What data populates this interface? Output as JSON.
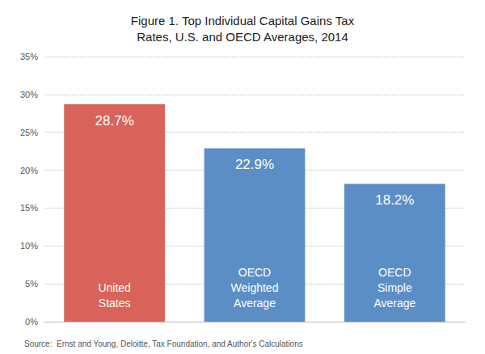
{
  "chart_data": {
    "type": "bar",
    "title": "Figure 1. Top Individual Capital Gains Tax\nRates, U.S. and OECD Averages, 2014",
    "categories": [
      "United\nStates",
      "OECD\nWeighted\nAverage",
      "OECD\nSimple\nAverage"
    ],
    "values": [
      28.7,
      22.9,
      18.2
    ],
    "value_labels": [
      "28.7%",
      "22.9%",
      "18.2%"
    ],
    "colors": [
      "#d9635a",
      "#5b8ec4",
      "#5b8ec4"
    ],
    "ylim": [
      0,
      35
    ],
    "yticks": [
      {
        "value": 0,
        "label": "0%"
      },
      {
        "value": 5,
        "label": "5%"
      },
      {
        "value": 10,
        "label": "10%"
      },
      {
        "value": 15,
        "label": "15%"
      },
      {
        "value": 20,
        "label": "20%"
      },
      {
        "value": 25,
        "label": "25%"
      },
      {
        "value": 30,
        "label": "30%"
      },
      {
        "value": 35,
        "label": "35%"
      }
    ],
    "grid": true,
    "data_labels": true,
    "tick_labels": "y",
    "annotations": [
      "Source:  Ernst and Young, Deloitte, Tax Foundation, and Author's Calculations"
    ]
  }
}
